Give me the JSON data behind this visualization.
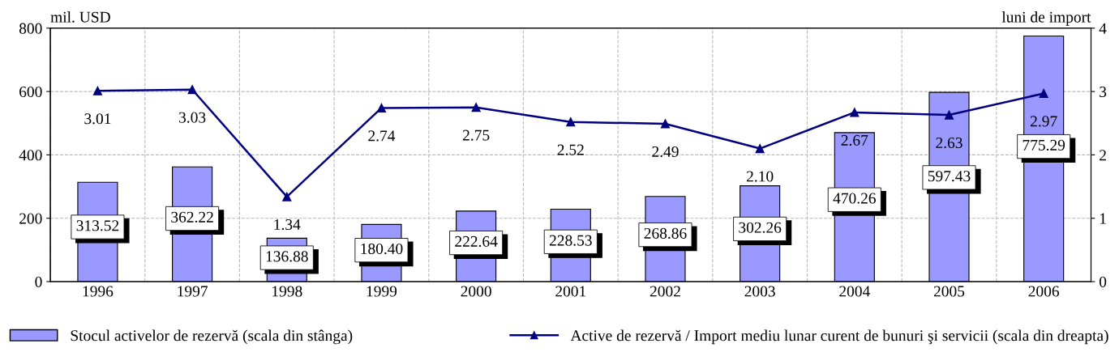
{
  "chart_data": {
    "type": "bar",
    "ylabel": "mil. USD",
    "y2label": "luni de import",
    "categories": [
      "1996",
      "1997",
      "1998",
      "1999",
      "2000",
      "2001",
      "2002",
      "2003",
      "2004",
      "2005",
      "2006"
    ],
    "series": [
      {
        "name": "Stocul activelor de rezervă (scala din stânga)",
        "color": "#9999ff",
        "values": [
          313.52,
          362.22,
          136.88,
          180.4,
          222.64,
          228.53,
          268.86,
          302.26,
          470.26,
          597.43,
          775.29
        ],
        "value_labels": [
          "313.52",
          "362.22",
          "136.88",
          "180.40",
          "222.64",
          "228.53",
          "268.86",
          "302.26",
          "470.26",
          "597.43",
          "775.29"
        ]
      },
      {
        "name": "Active de rezervă / Import mediu lunar curent de bunuri şi servicii (scala din dreapta)",
        "type": "line",
        "axis": "y2",
        "color": "#000080",
        "marker": "triangle",
        "values": [
          3.01,
          3.03,
          1.34,
          2.74,
          2.75,
          2.52,
          2.49,
          2.1,
          2.67,
          2.63,
          2.97
        ],
        "value_labels": [
          "3.01",
          "3.03",
          "1.34",
          "2.74",
          "2.75",
          "2.52",
          "2.49",
          "2.10",
          "2.67",
          "2.63",
          "2.97"
        ]
      }
    ],
    "ylim": [
      0,
      800
    ],
    "yticks": [
      0,
      200,
      400,
      600,
      800
    ],
    "y2lim": [
      0,
      4
    ],
    "y2ticks": [
      0,
      1,
      2,
      3,
      4
    ],
    "grid": true,
    "legend": "bottom"
  }
}
